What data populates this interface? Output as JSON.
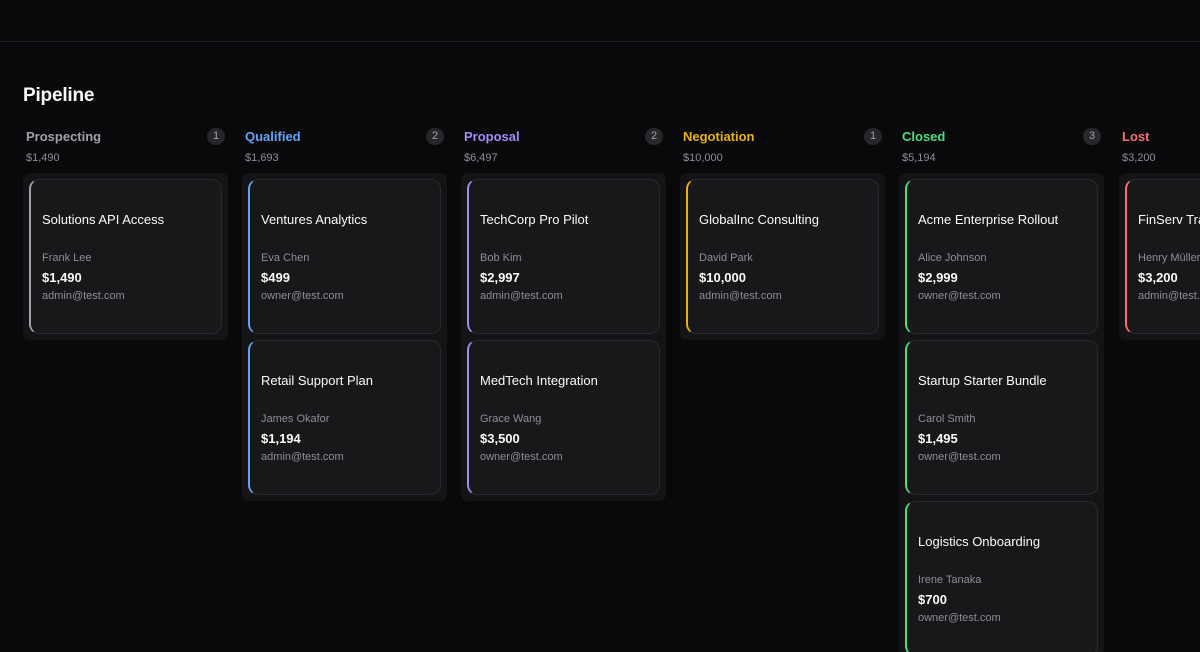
{
  "header": {
    "title": "Pipeline"
  },
  "colors": {
    "prospecting": "#a1a1aa",
    "qualified": "#60a5fa",
    "proposal": "#a78bfa",
    "negotiation": "#eab308",
    "closed": "#4ade80",
    "lost": "#f87171"
  },
  "columns": [
    {
      "name": "Prospecting",
      "count": "1",
      "total": "$1,490",
      "cards": [
        {
          "title": "Solutions API Access",
          "contact": "Frank Lee",
          "value": "$1,490",
          "owner": "admin@test.com"
        }
      ]
    },
    {
      "name": "Qualified",
      "count": "2",
      "total": "$1,693",
      "cards": [
        {
          "title": "Ventures Analytics",
          "contact": "Eva Chen",
          "value": "$499",
          "owner": "owner@test.com"
        },
        {
          "title": "Retail Support Plan",
          "contact": "James Okafor",
          "value": "$1,194",
          "owner": "admin@test.com"
        }
      ]
    },
    {
      "name": "Proposal",
      "count": "2",
      "total": "$6,497",
      "cards": [
        {
          "title": "TechCorp Pro Pilot",
          "contact": "Bob Kim",
          "value": "$2,997",
          "owner": "admin@test.com"
        },
        {
          "title": "MedTech Integration",
          "contact": "Grace Wang",
          "value": "$3,500",
          "owner": "owner@test.com"
        }
      ]
    },
    {
      "name": "Negotiation",
      "count": "1",
      "total": "$10,000",
      "cards": [
        {
          "title": "GlobalInc Consulting",
          "contact": "David Park",
          "value": "$10,000",
          "owner": "admin@test.com"
        }
      ]
    },
    {
      "name": "Closed",
      "count": "3",
      "total": "$5,194",
      "cards": [
        {
          "title": "Acme Enterprise Rollout",
          "contact": "Alice Johnson",
          "value": "$2,999",
          "owner": "owner@test.com"
        },
        {
          "title": "Startup Starter Bundle",
          "contact": "Carol Smith",
          "value": "$1,495",
          "owner": "owner@test.com"
        },
        {
          "title": "Logistics Onboarding",
          "contact": "Irene Tanaka",
          "value": "$700",
          "owner": "owner@test.com"
        }
      ]
    },
    {
      "name": "Lost",
      "count": "",
      "total": "$3,200",
      "cards": [
        {
          "title": "FinServ Tra",
          "contact": "Henry Müller",
          "value": "$3,200",
          "owner": "admin@test.c"
        }
      ]
    }
  ]
}
